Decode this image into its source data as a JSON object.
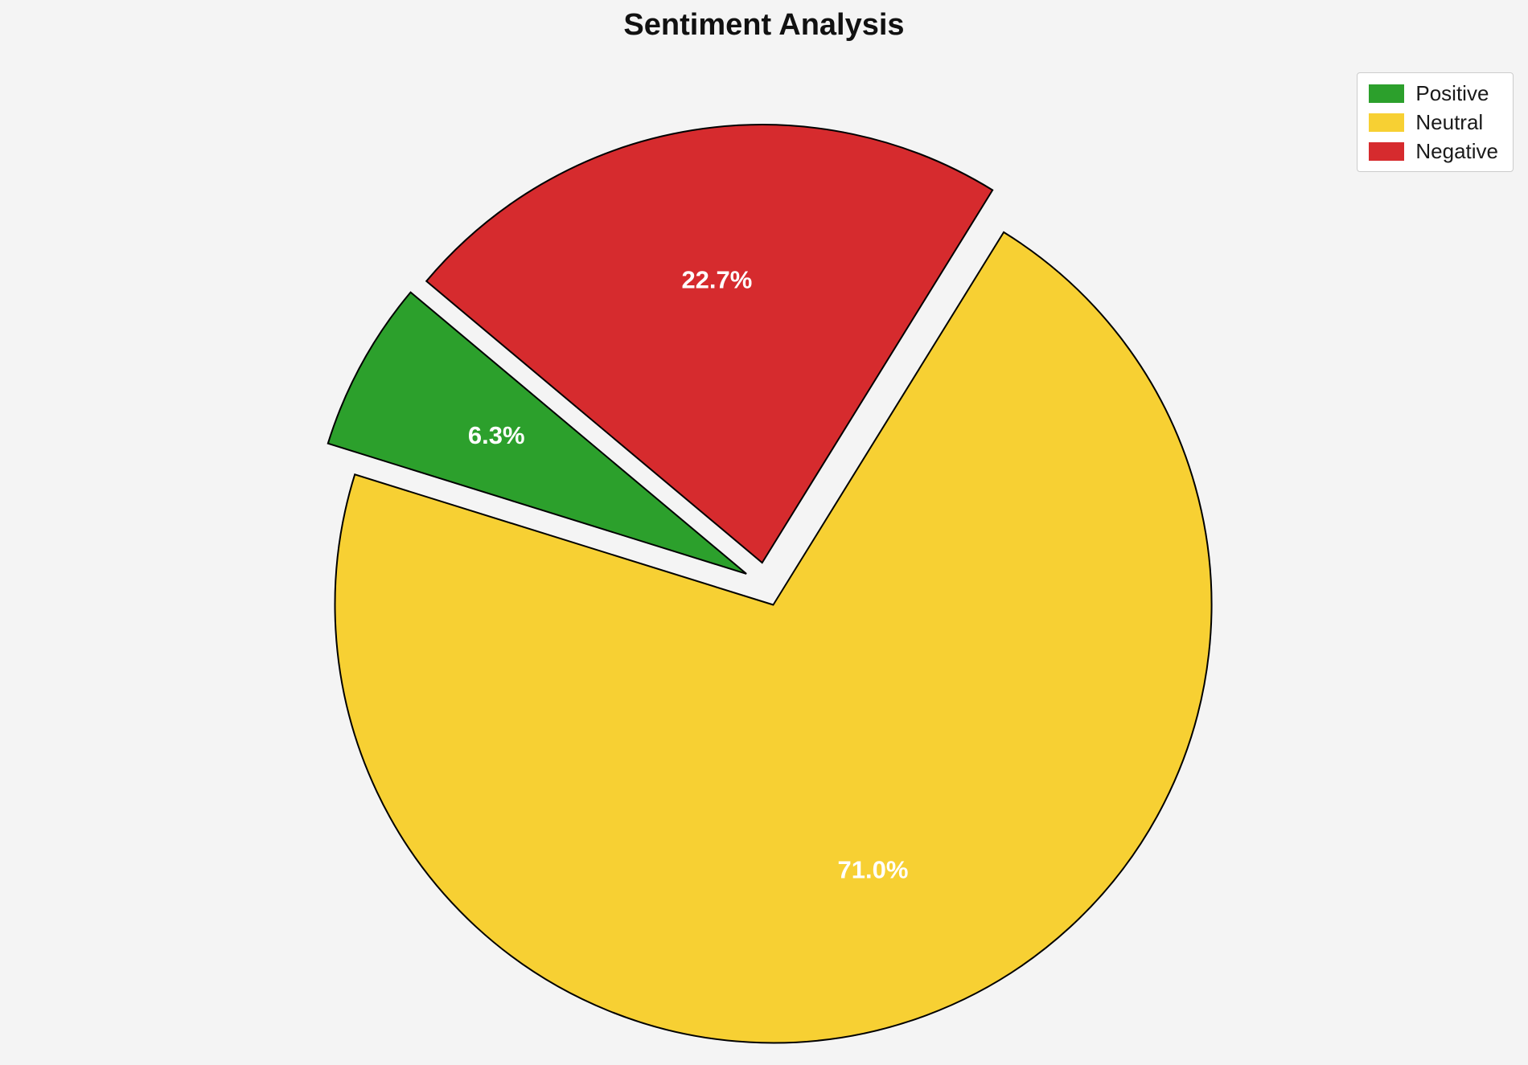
{
  "chart_data": {
    "type": "pie",
    "title": "Sentiment Analysis",
    "labels": [
      "Positive",
      "Neutral",
      "Negative"
    ],
    "values": [
      6.3,
      71.0,
      22.7
    ],
    "percent_labels": [
      "6.3%",
      "71.0%",
      "22.7%"
    ],
    "colors": [
      "#2ca02c",
      "#f7d033",
      "#d62b2e"
    ],
    "edge_color": "#000000",
    "percent_label_color": "#ffffff",
    "background": "#f4f4f4",
    "start_angle": 140,
    "counterclockwise": true,
    "explode": [
      0.05,
      0.05,
      0.05
    ],
    "legend_position": "upper right"
  }
}
